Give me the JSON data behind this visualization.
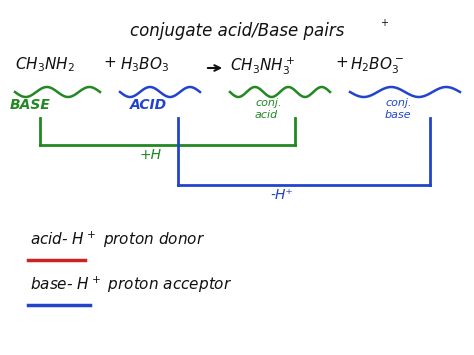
{
  "bg_color": "#ffffff",
  "title": "conjugate acid/Base pairs",
  "green_color": "#228822",
  "blue_color": "#2244cc",
  "red_color": "#cc2222",
  "black_color": "#111111",
  "label_base": "BASE",
  "label_acid": "ACID",
  "label_conj_acid": "conj.\nacid",
  "label_conj_base": "conj.\nbase",
  "label_plus_h": "+H",
  "label_minus_h": "-H⁺"
}
